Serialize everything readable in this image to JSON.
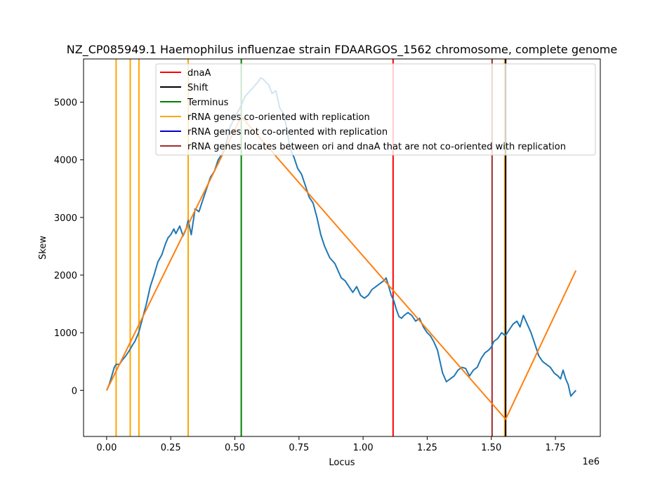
{
  "chart_data": {
    "type": "line",
    "title": "NZ_CP085949.1 Haemophilus influenzae strain FDAARGOS_1562 chromosome, complete genome",
    "xlabel": "Locus",
    "ylabel": "Skew",
    "x_offset_label": "1e6",
    "xlim": [
      -90000,
      1925000
    ],
    "ylim": [
      -800,
      5750
    ],
    "x_ticks": [
      0,
      250000,
      500000,
      750000,
      1000000,
      1250000,
      1500000,
      1750000
    ],
    "x_tick_labels": [
      "0.00",
      "0.25",
      "0.50",
      "0.75",
      "1.00",
      "1.25",
      "1.50",
      "1.75"
    ],
    "y_ticks": [
      0,
      1000,
      2000,
      3000,
      4000,
      5000
    ],
    "y_tick_labels": [
      "0",
      "1000",
      "2000",
      "3000",
      "4000",
      "5000"
    ],
    "grid": false,
    "legend_position": "top-right",
    "colors": {
      "skew": "#1f77b4",
      "fit": "#ff7f0e",
      "dnaA": "#ff0000",
      "shift": "#000000",
      "terminus": "#008000",
      "rrna_co": "#ffa500",
      "rrna_not_co": "#0000cd",
      "rrna_between": "#a52a2a"
    },
    "legend": [
      {
        "label": "dnaA",
        "color": "#ff0000"
      },
      {
        "label": "Shift",
        "color": "#000000"
      },
      {
        "label": "Terminus",
        "color": "#008000"
      },
      {
        "label": "rRNA genes co-oriented with replication",
        "color": "#ffa500"
      },
      {
        "label": "rRNA genes not co-oriented with replication",
        "color": "#0000cd"
      },
      {
        "label": "rRNA genes locates between ori and dnaA that are not co-oriented with replication",
        "color": "#a52a2a"
      }
    ],
    "vertical_lines": [
      {
        "x": 37000,
        "kind": "rrna_co"
      },
      {
        "x": 92000,
        "kind": "rrna_co"
      },
      {
        "x": 126000,
        "kind": "rrna_co"
      },
      {
        "x": 318000,
        "kind": "rrna_co"
      },
      {
        "x": 525000,
        "kind": "terminus"
      },
      {
        "x": 1117000,
        "kind": "dnaA"
      },
      {
        "x": 1503000,
        "kind": "rrna_between"
      },
      {
        "x": 1552000,
        "kind": "rrna_co"
      },
      {
        "x": 1556000,
        "kind": "shift"
      }
    ],
    "series": [
      {
        "kind": "skew",
        "x": [
          0,
          10000,
          20000,
          30000,
          37000,
          50000,
          60000,
          75000,
          90000,
          100000,
          110000,
          125000,
          140000,
          155000,
          170000,
          185000,
          200000,
          215000,
          230000,
          240000,
          250000,
          262000,
          270000,
          285000,
          298000,
          310000,
          318000,
          330000,
          345000,
          360000,
          375000,
          390000,
          405000,
          420000,
          435000,
          450000,
          460000,
          470000,
          480000,
          490000,
          500000,
          510000,
          520000,
          530000,
          540000,
          550000,
          560000,
          570000,
          580000,
          590000,
          600000,
          610000,
          620000,
          632000,
          645000,
          660000,
          675000,
          690000,
          700000,
          715000,
          730000,
          745000,
          760000,
          775000,
          790000,
          805000,
          820000,
          835000,
          850000,
          860000,
          870000,
          880000,
          890000,
          900000,
          915000,
          930000,
          945000,
          960000,
          975000,
          990000,
          1005000,
          1020000,
          1035000,
          1050000,
          1065000,
          1080000,
          1090000,
          1100000,
          1110000,
          1120000,
          1130000,
          1140000,
          1150000,
          1160000,
          1175000,
          1190000,
          1205000,
          1220000,
          1235000,
          1250000,
          1262000,
          1275000,
          1290000,
          1300000,
          1310000,
          1325000,
          1340000,
          1355000,
          1370000,
          1385000,
          1400000,
          1415000,
          1430000,
          1445000,
          1460000,
          1475000,
          1490000,
          1500000,
          1510000,
          1525000,
          1540000,
          1555000,
          1570000,
          1585000,
          1600000,
          1612000,
          1625000,
          1640000,
          1655000,
          1670000,
          1685000,
          1700000,
          1715000,
          1730000,
          1745000,
          1760000,
          1770000,
          1780000,
          1790000,
          1800000,
          1810000,
          1820000,
          1830000
        ],
        "y": [
          0,
          100,
          250,
          400,
          450,
          450,
          520,
          600,
          700,
          780,
          850,
          1000,
          1250,
          1500,
          1800,
          2000,
          2230,
          2350,
          2550,
          2650,
          2700,
          2800,
          2720,
          2850,
          2680,
          2800,
          2950,
          2700,
          3150,
          3100,
          3300,
          3500,
          3700,
          3800,
          4000,
          4100,
          4200,
          4350,
          4550,
          4650,
          4750,
          4820,
          4900,
          5000,
          5100,
          5150,
          5200,
          5250,
          5300,
          5350,
          5420,
          5400,
          5350,
          5300,
          5150,
          5200,
          4900,
          4800,
          4600,
          4200,
          4050,
          3850,
          3750,
          3550,
          3350,
          3250,
          3000,
          2700,
          2500,
          2400,
          2300,
          2250,
          2200,
          2100,
          1950,
          1900,
          1800,
          1700,
          1800,
          1650,
          1600,
          1650,
          1750,
          1800,
          1850,
          1900,
          1950,
          1800,
          1650,
          1550,
          1400,
          1280,
          1250,
          1300,
          1350,
          1300,
          1200,
          1250,
          1100,
          1000,
          950,
          850,
          700,
          500,
          300,
          150,
          200,
          250,
          350,
          400,
          380,
          250,
          350,
          400,
          550,
          650,
          700,
          750,
          850,
          900,
          1000,
          950,
          1050,
          1150,
          1200,
          1100,
          1300,
          1150,
          1000,
          800,
          600,
          500,
          450,
          400,
          300,
          250,
          200,
          350,
          200,
          100,
          -100,
          -50,
          0
        ]
      },
      {
        "kind": "fit",
        "x": [
          0,
          525000,
          1556000,
          1830000
        ],
        "y": [
          0,
          4750,
          -500,
          2080
        ]
      }
    ]
  }
}
